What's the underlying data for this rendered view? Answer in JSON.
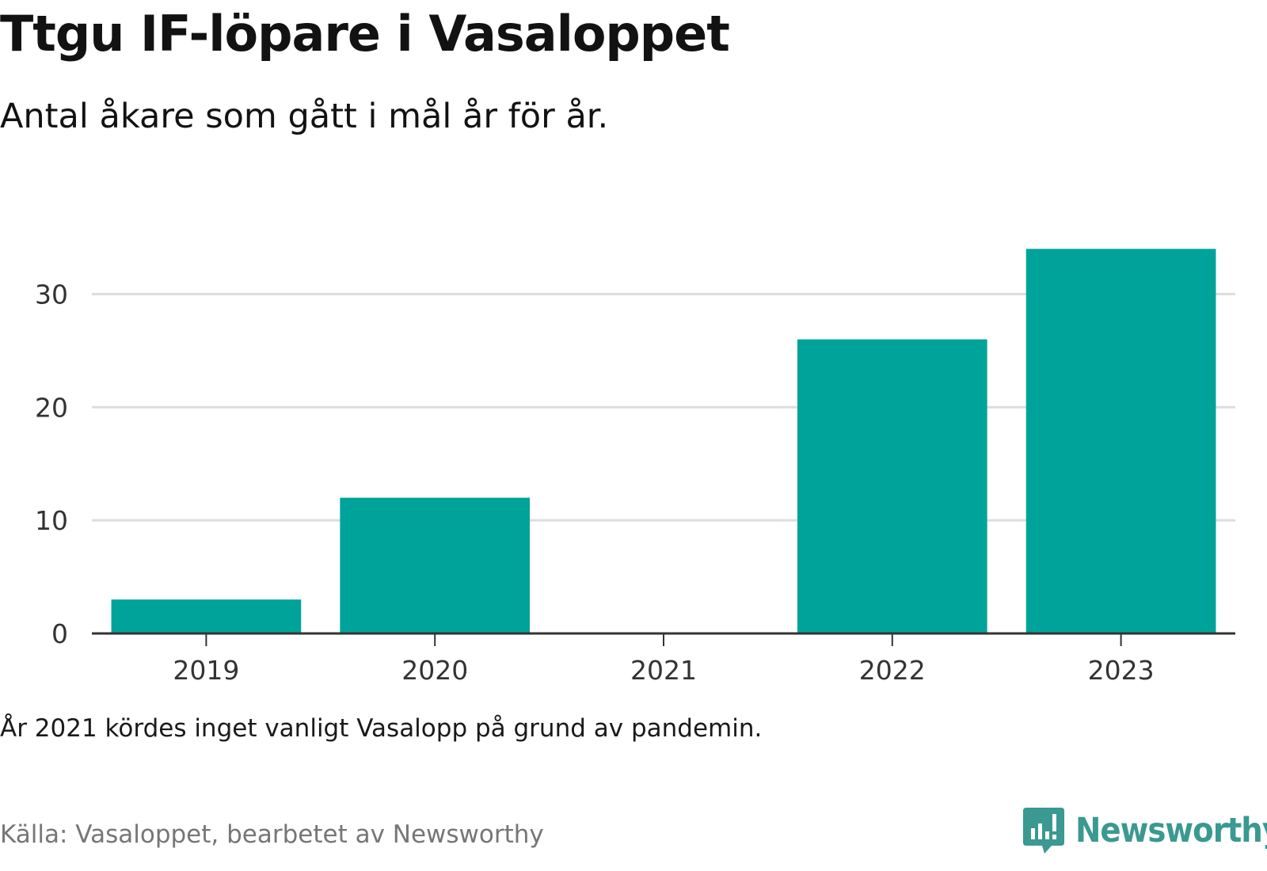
{
  "header": {
    "title": "Ttgu IF-löpare i Vasaloppet",
    "subtitle": "Antal åkare som gått i mål år för år."
  },
  "footer": {
    "note": "År 2021 kördes inget vanligt Vasalopp på grund av pandemin.",
    "source": "Källa: Vasaloppet, bearbetet av Newsworthy",
    "brand": "Newsworthy"
  },
  "colors": {
    "bar": "#00a39a",
    "grid": "#dddddd",
    "axis": "#333333",
    "brand": "#3a9990"
  },
  "icons": {
    "brand_logo": "bar-chart-speech-bubble-icon"
  },
  "chart_data": {
    "type": "bar",
    "title": "Ttgu IF-löpare i Vasaloppet",
    "subtitle": "Antal åkare som gått i mål år för år.",
    "categories": [
      "2019",
      "2020",
      "2021",
      "2022",
      "2023"
    ],
    "values": [
      3,
      12,
      0,
      26,
      34
    ],
    "xlabel": "",
    "ylabel": "",
    "ylim": [
      0,
      35
    ],
    "yticks": [
      0,
      10,
      20,
      30
    ],
    "grid": true,
    "legend": "none"
  }
}
